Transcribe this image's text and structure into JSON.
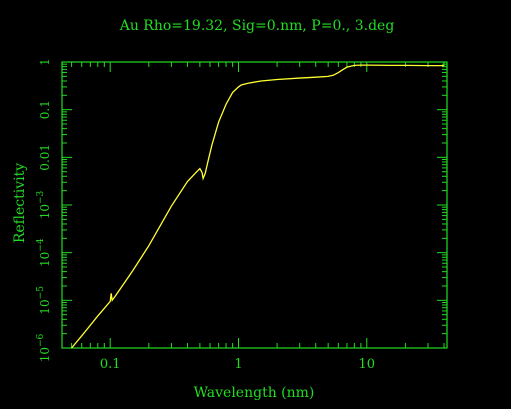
{
  "colors": {
    "background": "#000000",
    "axes": "#22dd22",
    "text": "#22dd22",
    "curve": "#ffff33"
  },
  "chart_data": {
    "type": "line",
    "title": "Au Rho=19.32, Sig=0.nm, P=0., 3.deg",
    "xlabel": "Wavelength (nm)",
    "ylabel": "Reflectivity",
    "x_scale": "log",
    "y_scale": "log",
    "xlim": [
      0.0421,
      42.2
    ],
    "ylim": [
      1e-06,
      1
    ],
    "grid": false,
    "x_ticks": [
      {
        "value": 0.1,
        "label": "0.1"
      },
      {
        "value": 1,
        "label": "1"
      },
      {
        "value": 10,
        "label": "10"
      }
    ],
    "y_ticks": [
      {
        "value": 1e-06,
        "mantissa": "10",
        "exponent": "−6"
      },
      {
        "value": 1e-05,
        "mantissa": "10",
        "exponent": "−5"
      },
      {
        "value": 0.0001,
        "mantissa": "10",
        "exponent": "−4"
      },
      {
        "value": 0.001,
        "mantissa": "10",
        "exponent": "−3"
      },
      {
        "value": 0.01,
        "mantissa": "0.01",
        "exponent": ""
      },
      {
        "value": 0.1,
        "mantissa": "0.1",
        "exponent": ""
      },
      {
        "value": 1,
        "mantissa": "1",
        "exponent": ""
      }
    ],
    "series": [
      {
        "x": [
          0.05,
          0.06,
          0.07,
          0.08,
          0.09,
          0.1,
          0.1018,
          0.1036,
          0.11,
          0.13,
          0.15,
          0.2,
          0.25,
          0.3,
          0.4,
          0.47,
          0.5,
          0.52,
          0.53,
          0.55,
          0.58,
          0.62,
          0.7,
          0.8,
          0.9,
          1.0,
          1.05,
          1.2,
          1.5,
          2,
          3,
          4,
          5,
          5.5,
          6,
          6.5,
          7,
          8,
          9,
          10,
          15,
          20,
          30,
          40
        ],
        "y": [
          1e-06,
          1.8e-06,
          3e-06,
          4.7e-06,
          6.8e-06,
          9.5e-06,
          1.4e-05,
          1e-05,
          1.25e-05,
          2.4e-05,
          4.2e-05,
          0.00014,
          0.0004,
          0.00095,
          0.0031,
          0.0049,
          0.0058,
          0.0048,
          0.0036,
          0.0046,
          0.0085,
          0.018,
          0.055,
          0.13,
          0.23,
          0.3,
          0.33,
          0.36,
          0.4,
          0.43,
          0.46,
          0.48,
          0.5,
          0.53,
          0.6,
          0.69,
          0.78,
          0.85,
          0.86,
          0.86,
          0.85,
          0.85,
          0.84,
          0.84
        ]
      }
    ]
  }
}
